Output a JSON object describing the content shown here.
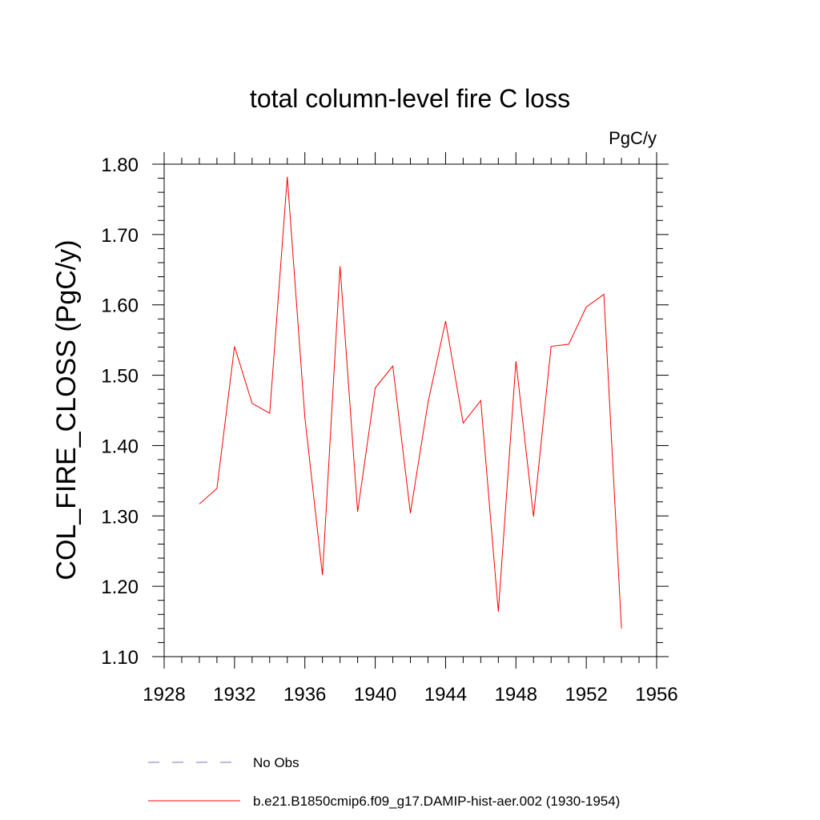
{
  "chart_data": {
    "type": "line",
    "title": "total column-level fire C loss",
    "units_label": "PgC/y",
    "xlabel": "",
    "ylabel": "COL_FIRE_CLOSS  (PgC/y)",
    "xlim": [
      1928,
      1956
    ],
    "ylim": [
      1.1,
      1.8
    ],
    "x_ticks": [
      "1928",
      "1932",
      "1936",
      "1940",
      "1944",
      "1948",
      "1952",
      "1956"
    ],
    "y_ticks": [
      "1.10",
      "1.20",
      "1.30",
      "1.40",
      "1.50",
      "1.60",
      "1.70",
      "1.80"
    ],
    "grid": false,
    "legend_position": "bottom",
    "series": [
      {
        "name": "b.e21.B1850cmip6.f09_g17.DAMIP-hist-aer.002 (1930-1954)",
        "color": "#ff0000",
        "dash": "solid",
        "x": [
          1930,
          1931,
          1932,
          1933,
          1934,
          1935,
          1936,
          1937,
          1938,
          1939,
          1940,
          1941,
          1942,
          1943,
          1944,
          1945,
          1946,
          1947,
          1948,
          1949,
          1950,
          1951,
          1952,
          1953,
          1954
        ],
        "values": [
          1.317,
          1.339,
          1.541,
          1.46,
          1.446,
          1.782,
          1.44,
          1.216,
          1.655,
          1.306,
          1.482,
          1.513,
          1.304,
          1.461,
          1.577,
          1.432,
          1.464,
          1.164,
          1.52,
          1.299,
          1.541,
          1.544,
          1.597,
          1.615,
          1.14
        ]
      }
    ],
    "legend": [
      {
        "label": "No Obs",
        "color": "#7b74c4",
        "dash": "dashed"
      },
      {
        "label": "b.e21.B1850cmip6.f09_g17.DAMIP-hist-aer.002 (1930-1954)",
        "color": "#ff0000",
        "dash": "solid"
      }
    ]
  }
}
